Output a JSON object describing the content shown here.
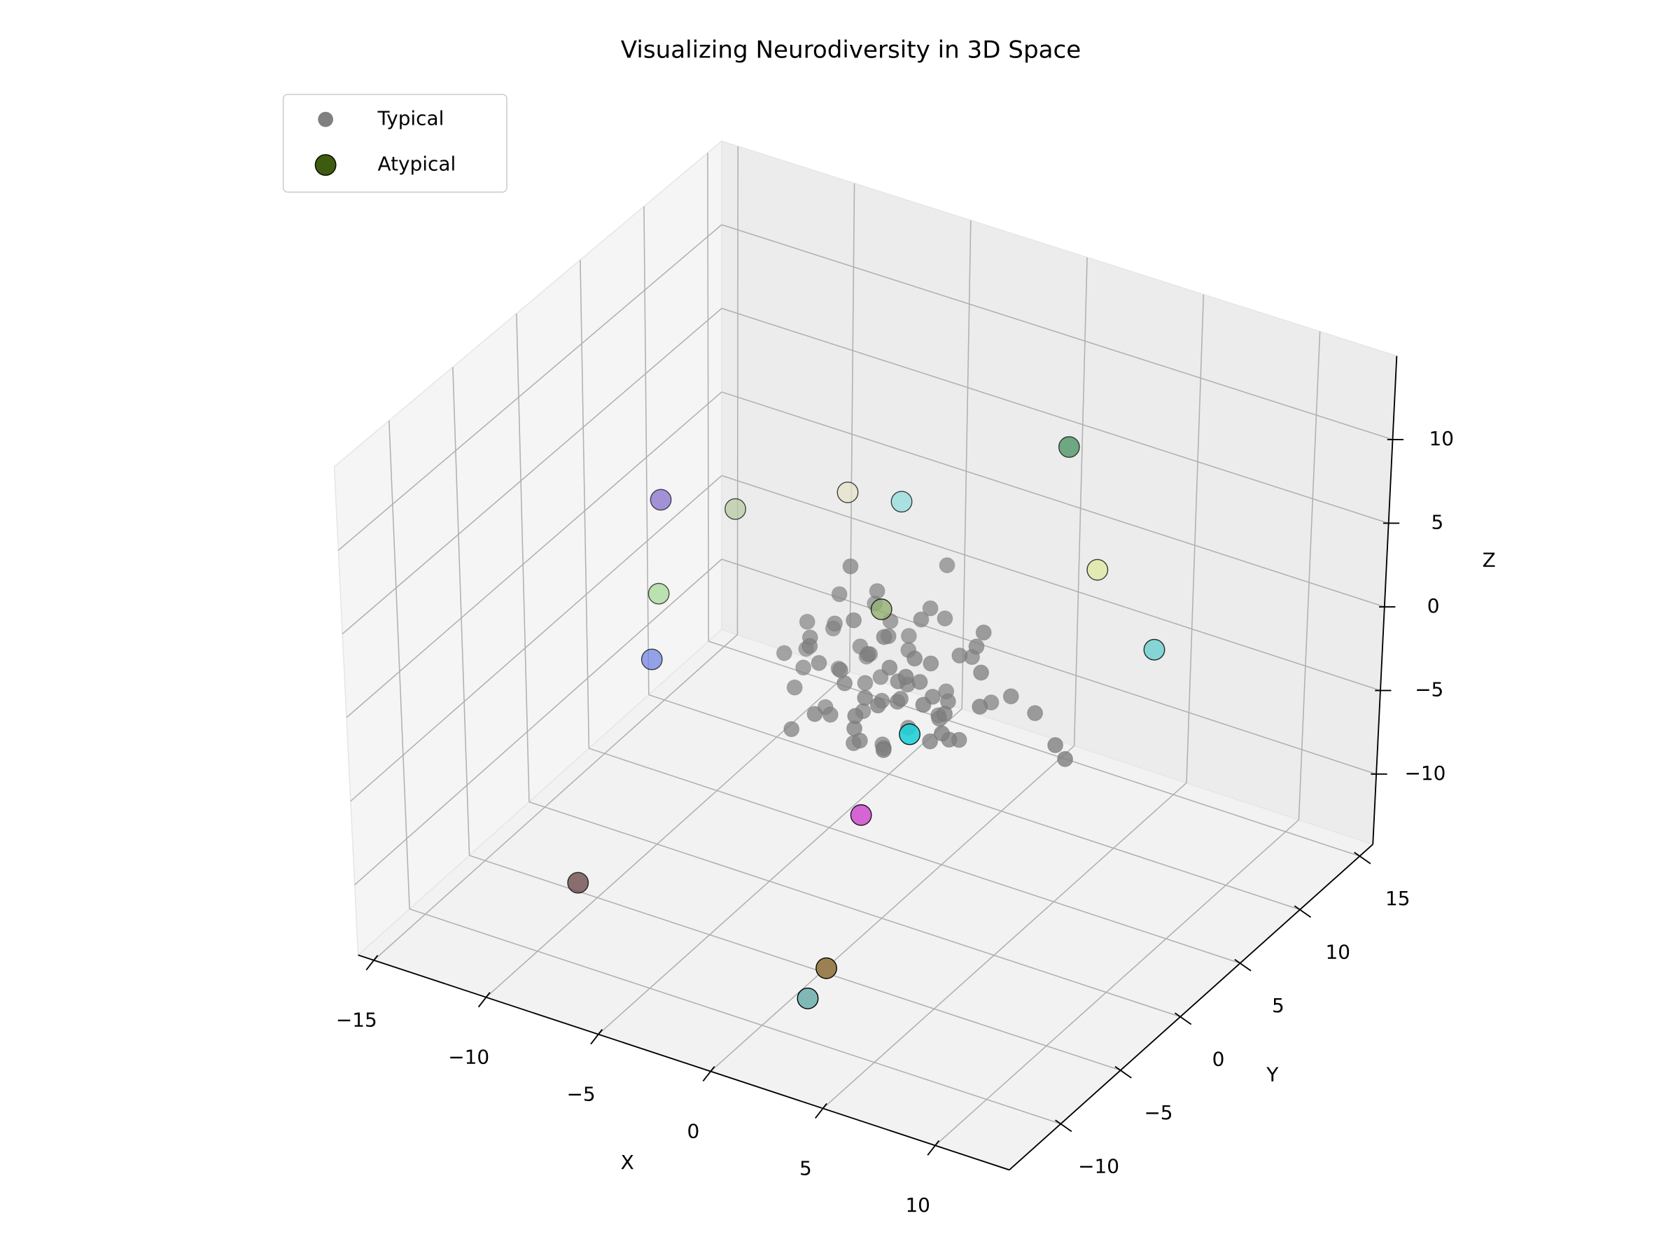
{
  "chart_data": {
    "type": "scatter3d",
    "title": "Visualizing Neurodiversity in 3D Space",
    "x_label": "X",
    "y_label": "Y",
    "z_label": "Z",
    "xlim": [
      -15.7,
      13.3
    ],
    "ylim": [
      -14.3,
      16.1
    ],
    "zlim": [
      -14.2,
      15.0
    ],
    "xticks": [
      {
        "value": -15,
        "label": "−15"
      },
      {
        "value": -10,
        "label": "−10"
      },
      {
        "value": -5,
        "label": "−5"
      },
      0,
      5,
      10
    ],
    "yticks": [
      {
        "value": -10,
        "label": "−10"
      },
      {
        "value": -5,
        "label": "−5"
      },
      0,
      5,
      10,
      15
    ],
    "zticks": [
      {
        "value": -10,
        "label": "−10"
      },
      {
        "value": -5,
        "label": "−5"
      },
      0,
      5,
      10
    ],
    "grid": true,
    "legend": "upper left",
    "series": [
      {
        "name": "Typical",
        "color": "#808080",
        "x": [
          0.5,
          -1.8,
          2.3,
          -0.6,
          1.1,
          -2.7,
          0.9,
          3.4,
          -1.2,
          0.2,
          -3.1,
          1.7,
          -0.4,
          2.8,
          -1.5,
          0.6,
          -2.2,
          1.4,
          3.9,
          -0.9,
          0.1,
          -1.9,
          2.1,
          -3.6,
          1.0,
          -0.2,
          4.2,
          -1.1,
          0.7,
          2.6,
          -2.5,
          1.9,
          -0.7,
          3.1,
          -1.4,
          0.4,
          -4.0,
          2.4,
          0.0,
          -1.7,
          5.1,
          -0.5,
          1.3,
          -2.9,
          0.8,
          2.0,
          -1.0,
          3.6,
          -3.3,
          1.6,
          -0.3,
          0.3,
          -2.0,
          2.9,
          -1.3,
          1.2,
          -0.8,
          4.5,
          -2.4,
          0.6,
          1.8,
          -3.8,
          2.2,
          -0.1,
          1.5,
          -1.6,
          3.3,
          -2.8,
          0.9,
          -0.6,
          6.8,
          7.5,
          -1.2,
          0.4,
          -4.5,
          1.0,
          2.7,
          -0.4,
          3.0,
          -2.1
        ],
        "y": [
          -0.3,
          2.1,
          0.4,
          -1.9,
          3.2,
          -0.8,
          1.5,
          -1.2,
          0.7,
          -2.6,
          1.8,
          -0.5,
          2.9,
          1.1,
          -1.4,
          0.2,
          3.5,
          -2.9,
          0.8,
          -0.6,
          1.9,
          -2.3,
          2.4,
          0.3,
          -1.7,
          0.9,
          2.7,
          -3.4,
          3.8,
          -0.9,
          1.2,
          0.6,
          -1.0,
          1.9,
          2.5,
          -2.1,
          -0.5,
          -2.5,
          0.0,
          1.4,
          3.0,
          -0.2,
          2.2,
          -1.7,
          -1.3,
          3.6,
          0.5,
          -1.8,
          2.6,
          1.0,
          -2.8,
          1.6,
          -0.1,
          0.1,
          3.1,
          -0.7,
          1.1,
          -0.4,
          -2.9,
          2.8,
          -3.2,
          1.0,
          1.3,
          -1.6,
          0.3,
          2.0,
          2.1,
          0.6,
          -0.4,
          3.3,
          1.5,
          1.0,
          -0.3,
          4.5,
          2.2,
          -4.0,
          3.9,
          0.8,
          -2.2,
          -1.2
        ],
        "z": [
          1.2,
          -0.7,
          -1.5,
          0.8,
          -2.2,
          1.9,
          3.1,
          0.3,
          -2.8,
          -1.1,
          0.6,
          2.4,
          -0.2,
          -3.0,
          -1.8,
          0.1,
          1.4,
          1.0,
          1.7,
          3.6,
          -1.4,
          2.7,
          0.9,
          -1.0,
          -2.5,
          2.0,
          -0.8,
          -0.3,
          1.6,
          -1.9,
          3.3,
          -0.5,
          -3.4,
          2.2,
          -2.0,
          0.5,
          0.2,
          2.9,
          -1.2,
          0.4,
          -1.6,
          1.5,
          -2.9,
          -0.6,
          3.8,
          0.0,
          -0.9,
          -0.4,
          -2.4,
          1.1,
          2.3,
          -3.7,
          2.6,
          -2.3,
          1.0,
          -0.1,
          4.3,
          0.7,
          -2.1,
          2.8,
          -1.3,
          1.2,
          -1.1,
          -2.6,
          0.4,
          -0.4,
          3.0,
          -3.2,
          -0.6,
          0.3,
          -1.8,
          -2.0,
          6.5,
          4.2,
          -1.5,
          0.9,
          -2.6,
          -4.5,
          1.3,
          0.9
        ]
      },
      {
        "name": "Atypical",
        "color": "#3d5c0f",
        "colors": [
          "#3a8a55",
          "#dfe8a0",
          "#70d0d0",
          "#90dde0",
          "#e6e2c8",
          "#b8c8a0",
          "#7a60c8",
          "#a0d890",
          "#6a80e0",
          "#90b070",
          "#20d0d8",
          "#d050d0",
          "#6a4848",
          "#9a8050",
          "#80b8b8"
        ],
        "x": [
          1.6,
          4.0,
          7.6,
          -2.4,
          -4.2,
          -8.0,
          -10.7,
          -10.3,
          -10.1,
          -1.1,
          2.3,
          0.7,
          -10.3,
          2.9,
          2.6
        ],
        "y": [
          12,
          10,
          8,
          6,
          5,
          3,
          2,
          1,
          0,
          2,
          -2,
          -3,
          -6,
          -10,
          -11
        ],
        "z": [
          7.0,
          2.0,
          0.1,
          5.8,
          6.2,
          4.8,
          4.8,
          0.0,
          -3.2,
          2.5,
          -0.9,
          -5.8,
          -12.8,
          -9.5,
          -10.8
        ]
      }
    ]
  }
}
